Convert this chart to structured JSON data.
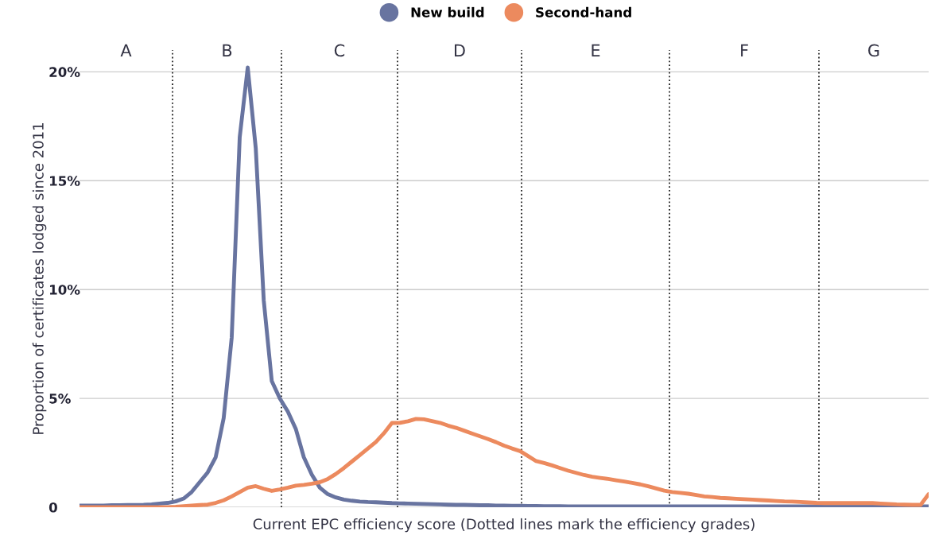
{
  "chart_data": {
    "type": "line",
    "xlabel": "Current EPC efficiency score (Dotted lines mark the efficiency grades)",
    "ylabel": "Proportion of certificates lodged since 2011",
    "categories": [
      null,
      null,
      null,
      null,
      null,
      null,
      null,
      null,
      null,
      null,
      null,
      null,
      null,
      null,
      null,
      null,
      null,
      null,
      null,
      null,
      null,
      null,
      null,
      null,
      null,
      null,
      null,
      null,
      null,
      null,
      null,
      null,
      null,
      null,
      null,
      null,
      null,
      null,
      null,
      null,
      null,
      null,
      null,
      null,
      null,
      null,
      null,
      null,
      null,
      null,
      null,
      null,
      null,
      null,
      null,
      null,
      null,
      null,
      null,
      null,
      null,
      null,
      null,
      null,
      null,
      null,
      null,
      null,
      null,
      null,
      null,
      null,
      null,
      null,
      null,
      null,
      null,
      null,
      null,
      null,
      null,
      null,
      null,
      null,
      null,
      null,
      null,
      null,
      null,
      null,
      null,
      null,
      null,
      null,
      null,
      null,
      null,
      null,
      null,
      null,
      null,
      null,
      null,
      null,
      null,
      null,
      null
    ],
    "ylim": [
      0,
      21
    ],
    "yticks": [
      {
        "value": 0,
        "label": "0"
      },
      {
        "value": 5,
        "label": "5%"
      },
      {
        "value": 10,
        "label": "10%"
      },
      {
        "value": 15,
        "label": "15%"
      },
      {
        "value": 20,
        "label": "20%"
      }
    ],
    "grid": "y",
    "legend": "top",
    "marker": "none",
    "line_style": "solid",
    "series": [
      {
        "name": "New build",
        "color": "#6874a0",
        "values": [
          0.08,
          0.08,
          0.08,
          0.08,
          0.09,
          0.09,
          0.1,
          0.1,
          0.11,
          0.13,
          0.17,
          0.2,
          0.27,
          0.4,
          0.7,
          1.15,
          1.6,
          2.3,
          4.1,
          7.8,
          17.0,
          20.2,
          16.5,
          9.5,
          5.8,
          5.0,
          4.4,
          3.6,
          2.3,
          1.5,
          0.9,
          0.6,
          0.45,
          0.35,
          0.3,
          0.26,
          0.24,
          0.23,
          0.21,
          0.19,
          0.18,
          0.17,
          0.16,
          0.15,
          0.14,
          0.13,
          0.12,
          0.11,
          0.11,
          0.1,
          0.09,
          0.09,
          0.08,
          0.08,
          0.07,
          0.07,
          0.06,
          0.06,
          0.05,
          0.05,
          0.05,
          0.04,
          0.04,
          0.04,
          0.04,
          0.04,
          0.04,
          0.04,
          0.04,
          0.04,
          0.04,
          0.04,
          0.04,
          0.04,
          0.04,
          0.04,
          0.04,
          0.04,
          0.04,
          0.04,
          0.04,
          0.04,
          0.04,
          0.04,
          0.04,
          0.04,
          0.04,
          0.04,
          0.04,
          0.04,
          0.04,
          0.04,
          0.04,
          0.04,
          0.04,
          0.04,
          0.04,
          0.04,
          0.04,
          0.04,
          0.04,
          0.04,
          0.04,
          0.04,
          0.04,
          0.04,
          0.04
        ]
      },
      {
        "name": "Second-hand",
        "color": "#ec8a5e",
        "values": [
          0,
          0,
          0,
          0,
          0,
          0,
          0,
          0,
          0,
          0,
          0,
          0,
          0.02,
          0.05,
          0.08,
          0.1,
          0.12,
          0.2,
          0.32,
          0.5,
          0.7,
          0.9,
          0.97,
          0.85,
          0.75,
          0.82,
          0.9,
          0.99,
          1.03,
          1.08,
          1.15,
          1.3,
          1.53,
          1.8,
          2.1,
          2.4,
          2.7,
          3.0,
          3.4,
          3.87,
          3.88,
          3.95,
          4.06,
          4.04,
          3.96,
          3.88,
          3.75,
          3.65,
          3.52,
          3.39,
          3.26,
          3.13,
          2.99,
          2.83,
          2.7,
          2.58,
          2.35,
          2.12,
          2.03,
          1.92,
          1.8,
          1.68,
          1.58,
          1.48,
          1.4,
          1.35,
          1.3,
          1.24,
          1.18,
          1.12,
          1.05,
          0.96,
          0.86,
          0.76,
          0.7,
          0.66,
          0.62,
          0.56,
          0.5,
          0.47,
          0.43,
          0.41,
          0.39,
          0.37,
          0.35,
          0.33,
          0.31,
          0.29,
          0.27,
          0.26,
          0.24,
          0.22,
          0.2,
          0.19,
          0.19,
          0.19,
          0.19,
          0.19,
          0.19,
          0.19,
          0.17,
          0.15,
          0.13,
          0.12,
          0.11,
          0.11,
          0.6
        ]
      }
    ],
    "annotations": [
      "A",
      "B",
      "C",
      "D",
      "E",
      "F",
      "G"
    ]
  }
}
